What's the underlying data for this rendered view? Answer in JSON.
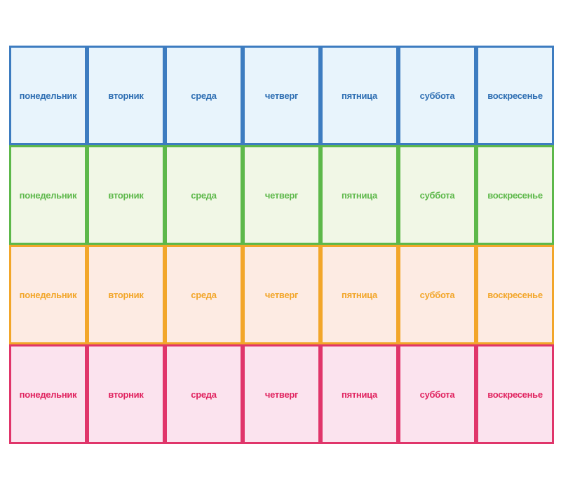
{
  "days": [
    "понедельник",
    "вторник",
    "среда",
    "четверг",
    "пятница",
    "суббота",
    "воскресенье"
  ],
  "rows": [
    {
      "name": "blue",
      "text_color": "#2F6FB3",
      "border_color": "#3D7CC0",
      "fill_color": "#E8F4FC"
    },
    {
      "name": "green",
      "text_color": "#5DB84A",
      "border_color": "#5DB84A",
      "fill_color": "#F1F7E6"
    },
    {
      "name": "orange",
      "text_color": "#F2A62A",
      "border_color": "#F2A62A",
      "fill_color": "#FDEBE3"
    },
    {
      "name": "pink",
      "text_color": "#E0235F",
      "border_color": "#E0356A",
      "fill_color": "#FBE3EE"
    }
  ]
}
